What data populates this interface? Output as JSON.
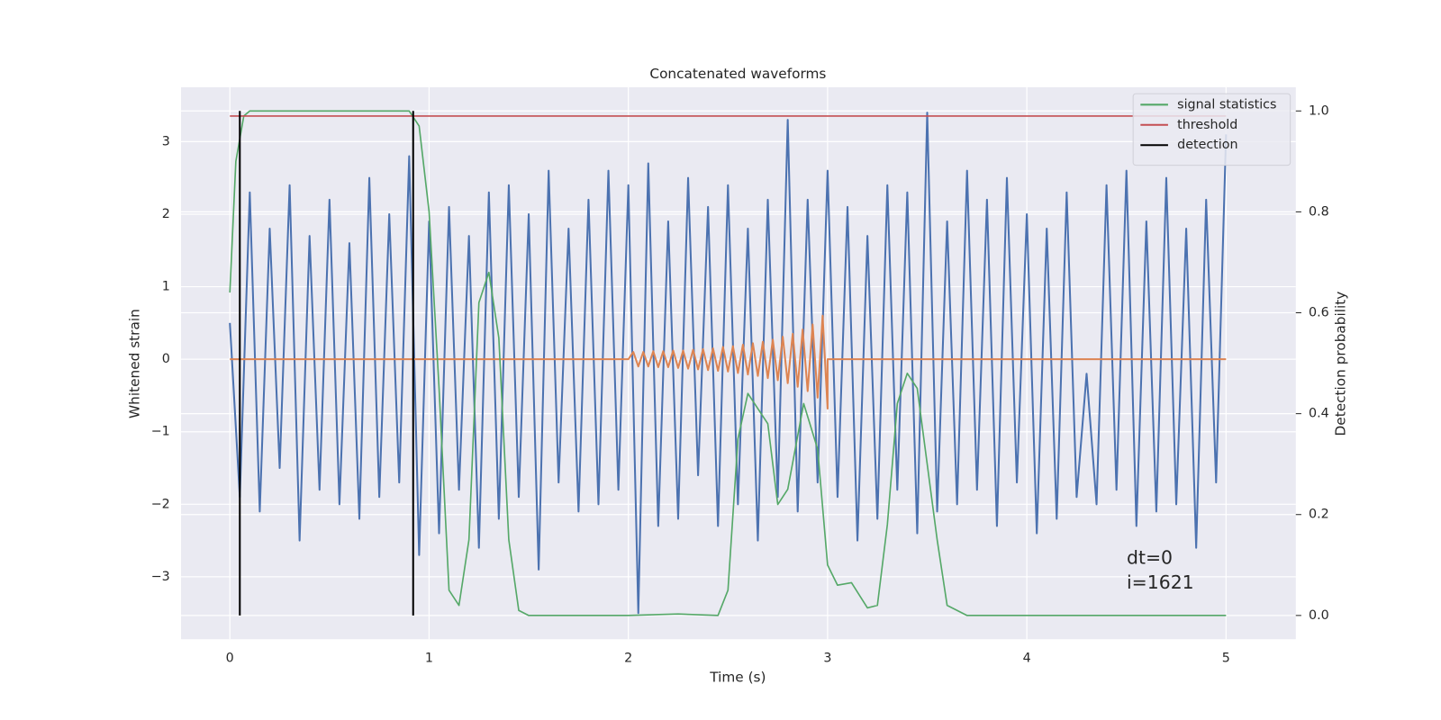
{
  "chart_data": {
    "type": "line",
    "title": "Concatenated waveforms",
    "xlabel": "Time (s)",
    "ylabel": "Whitened strain",
    "y2label": "Detection probability",
    "xlim": [
      -0.245,
      5.35
    ],
    "ylim": [
      -3.86,
      3.75
    ],
    "y2lim": [
      -0.047,
      1.047
    ],
    "xticks": [
      0,
      1,
      2,
      3,
      4,
      5
    ],
    "yticks": [
      {
        "value": -3,
        "label": "−3"
      },
      {
        "value": -2,
        "label": "−2"
      },
      {
        "value": -1,
        "label": "−1"
      },
      0,
      1,
      2,
      3
    ],
    "y2ticks": [
      {
        "value": 0,
        "label": "0.0"
      },
      0.2,
      0.4,
      0.6,
      0.8,
      {
        "value": 1,
        "label": "1.0"
      }
    ],
    "grid": true,
    "legend": "upper right",
    "annotations": [
      "dt=0",
      "i=1621"
    ],
    "series": [
      {
        "color": "#4c72b0",
        "x": [
          0,
          0.05,
          0.1,
          0.15,
          0.2,
          0.25,
          0.3,
          0.35,
          0.4,
          0.45,
          0.5,
          0.55,
          0.6,
          0.65,
          0.7,
          0.75,
          0.8,
          0.85,
          0.9,
          0.95,
          1,
          1.05,
          1.1,
          1.15,
          1.2,
          1.25,
          1.3,
          1.35,
          1.4,
          1.45,
          1.5,
          1.55,
          1.6,
          1.65,
          1.7,
          1.75,
          1.8,
          1.85,
          1.9,
          1.95,
          2,
          2.05,
          2.1,
          2.15,
          2.2,
          2.25,
          2.3,
          2.35,
          2.4,
          2.45,
          2.5,
          2.55,
          2.6,
          2.65,
          2.7,
          2.75,
          2.8,
          2.85,
          2.9,
          2.95,
          3,
          3.05,
          3.1,
          3.15,
          3.2,
          3.25,
          3.3,
          3.35,
          3.4,
          3.45,
          3.5,
          3.55,
          3.6,
          3.65,
          3.7,
          3.75,
          3.8,
          3.85,
          3.9,
          3.95,
          4,
          4.05,
          4.1,
          4.15,
          4.2,
          4.25,
          4.3,
          4.35,
          4.4,
          4.45,
          4.5,
          4.55,
          4.6,
          4.65,
          4.7,
          4.75,
          4.8,
          4.85,
          4.9,
          4.95,
          5
        ],
        "values": [
          0.5,
          -1.9,
          2.3,
          -2.1,
          1.8,
          -1.5,
          2.4,
          -2.5,
          1.7,
          -1.8,
          2.2,
          -2.0,
          1.6,
          -2.2,
          2.5,
          -1.9,
          2.0,
          -1.7,
          2.8,
          -2.7,
          1.9,
          -2.4,
          2.1,
          -1.8,
          1.7,
          -2.6,
          2.3,
          -2.2,
          2.4,
          -1.9,
          2.0,
          -2.9,
          2.6,
          -1.7,
          1.8,
          -2.1,
          2.2,
          -2.0,
          2.6,
          -1.8,
          2.4,
          -3.5,
          2.7,
          -2.3,
          1.9,
          -2.2,
          2.5,
          -1.6,
          2.1,
          -2.3,
          2.4,
          -2.0,
          1.8,
          -2.5,
          2.2,
          -1.9,
          3.3,
          -2.1,
          2.2,
          -1.7,
          2.6,
          -1.9,
          2.1,
          -2.5,
          1.7,
          -2.2,
          2.4,
          -1.8,
          2.3,
          -2.4,
          3.4,
          -2.1,
          1.9,
          -2.0,
          2.6,
          -1.8,
          2.2,
          -2.3,
          2.5,
          -1.7,
          2.0,
          -2.4,
          1.8,
          -2.2,
          2.3,
          -1.9,
          -0.2,
          -2.0,
          2.4,
          -1.8,
          2.6,
          -2.3,
          1.9,
          -2.1,
          2.5,
          -2.0,
          1.8,
          -2.6,
          2.2,
          -1.7,
          3.1
        ]
      },
      {
        "color": "#dd8452",
        "x": [
          0,
          2.0,
          2.025,
          2.05,
          2.075,
          2.1,
          2.125,
          2.15,
          2.175,
          2.2,
          2.225,
          2.25,
          2.275,
          2.3,
          2.325,
          2.35,
          2.375,
          2.4,
          2.425,
          2.45,
          2.475,
          2.5,
          2.525,
          2.55,
          2.575,
          2.6,
          2.625,
          2.65,
          2.675,
          2.7,
          2.725,
          2.75,
          2.775,
          2.8,
          2.825,
          2.85,
          2.875,
          2.9,
          2.925,
          2.95,
          2.975,
          3.0,
          3.0,
          5
        ],
        "values": [
          0,
          0,
          0.1,
          -0.1,
          0.1,
          -0.1,
          0.11,
          -0.11,
          0.11,
          -0.11,
          0.12,
          -0.12,
          0.12,
          -0.13,
          0.13,
          -0.14,
          0.14,
          -0.15,
          0.15,
          -0.16,
          0.17,
          -0.17,
          0.18,
          -0.19,
          0.2,
          -0.21,
          0.22,
          -0.23,
          0.24,
          -0.26,
          0.27,
          -0.29,
          0.31,
          -0.33,
          0.35,
          -0.38,
          0.41,
          -0.44,
          0.48,
          -0.53,
          0.6,
          -0.68,
          0,
          0
        ]
      },
      {
        "name": "signal statistics",
        "color": "#55a868",
        "axis": "y2",
        "x": [
          0,
          0.03,
          0.07,
          0.1,
          0.5,
          0.9,
          0.95,
          1.0,
          1.05,
          1.1,
          1.15,
          1.2,
          1.25,
          1.3,
          1.35,
          1.4,
          1.45,
          1.5,
          2.0,
          2.25,
          2.45,
          2.5,
          2.55,
          2.6,
          2.7,
          2.75,
          2.8,
          2.88,
          2.95,
          3.0,
          3.05,
          3.12,
          3.2,
          3.25,
          3.3,
          3.35,
          3.4,
          3.45,
          3.55,
          3.6,
          3.7,
          5.0
        ],
        "values": [
          0.64,
          0.9,
          0.99,
          1.0,
          1.0,
          1.0,
          0.97,
          0.8,
          0.45,
          0.05,
          0.02,
          0.15,
          0.62,
          0.68,
          0.55,
          0.15,
          0.01,
          0.0,
          0.0,
          0.003,
          0.0,
          0.05,
          0.35,
          0.44,
          0.38,
          0.22,
          0.25,
          0.42,
          0.33,
          0.1,
          0.06,
          0.065,
          0.015,
          0.02,
          0.18,
          0.42,
          0.48,
          0.45,
          0.15,
          0.02,
          0.0,
          0.0
        ]
      },
      {
        "name": "threshold",
        "color": "#c44e52",
        "axis": "y2",
        "x": [
          0,
          5
        ],
        "values": [
          0.99,
          0.99
        ]
      },
      {
        "name": "detection",
        "color": "#000000",
        "axis": "y2",
        "x": [
          0.05,
          0.92
        ],
        "ymin": 0,
        "ymax": 1
      }
    ]
  }
}
